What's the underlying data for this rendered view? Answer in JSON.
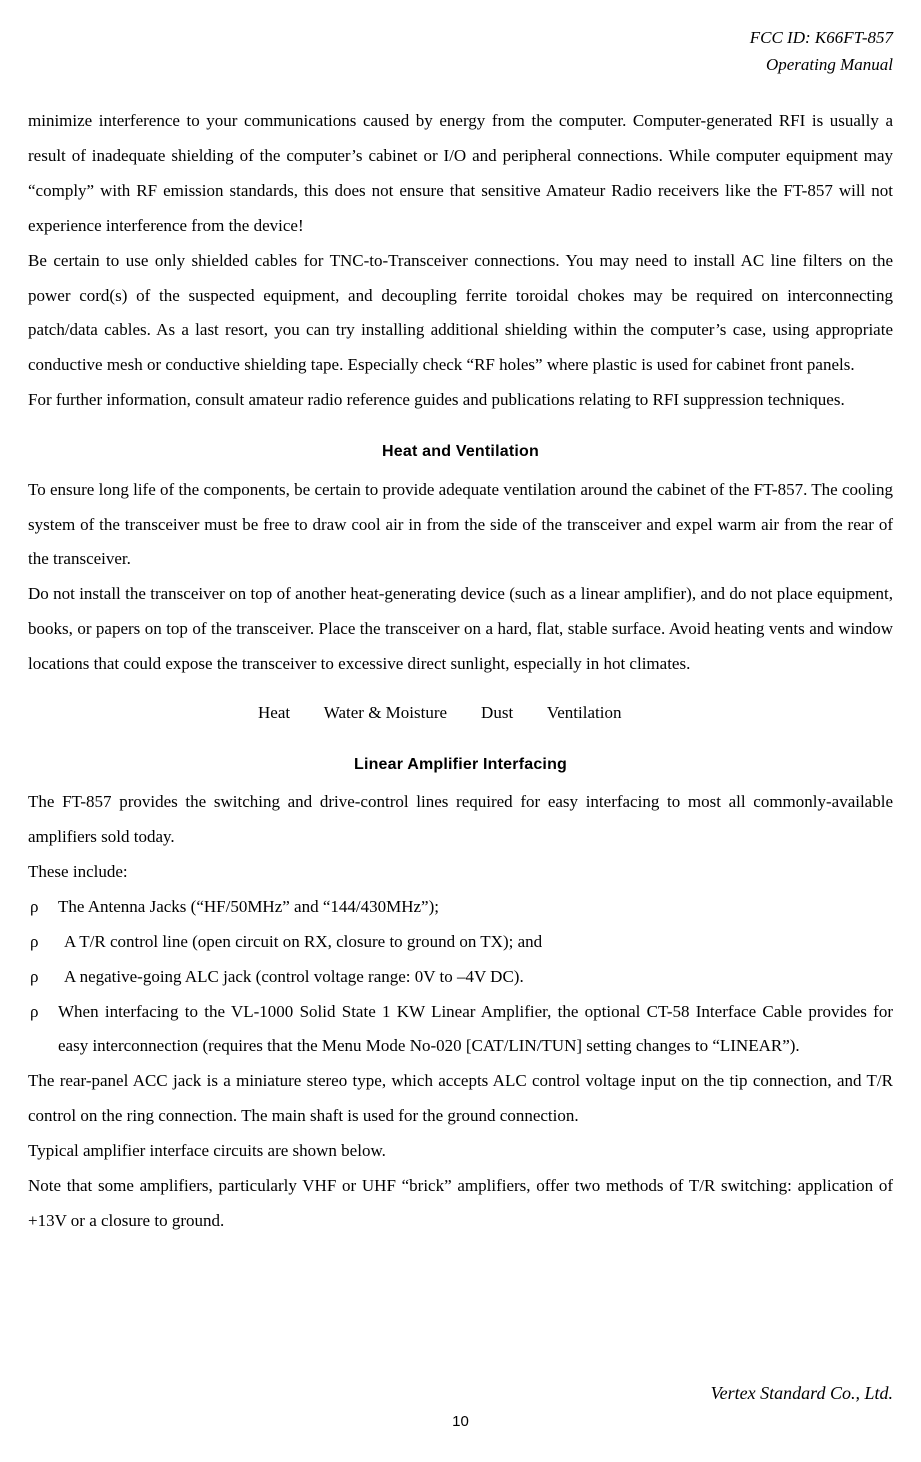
{
  "header": {
    "fcc_line": "FCC ID: K66FT-857",
    "subtitle": "Operating Manual"
  },
  "body": {
    "para1": "minimize interference to your communications caused by energy from the computer. Computer-generated RFI is usually a result of inadequate shielding of the computer’s cabinet or I/O and peripheral connections. While computer equipment may “comply” with RF emission standards, this does not ensure that sensitive Amateur Radio receivers like the FT-857 will not experience interference from the device!",
    "para2": "Be certain to use only shielded cables for TNC-to-Transceiver connections. You may need to install AC line filters on the power cord(s) of the suspected equipment, and decoupling ferrite toroidal chokes may be required on interconnecting patch/data cables. As a last resort, you can try installing additional shielding within the computer’s case, using appropriate conductive mesh or conductive shielding tape. Especially check “RF holes” where plastic is used for cabinet front panels.",
    "para3": "For further information, consult amateur radio reference guides and publications relating to RFI suppression techniques.",
    "heat_heading": "Heat and Ventilation",
    "heat_para1": "To ensure long life of the components, be certain to provide adequate ventilation around the cabinet of the FT-857. The cooling system of the transceiver must be free to draw cool air in from the side of the transceiver and expel warm air from the rear of the transceiver.",
    "heat_para2": "Do not install the transceiver on top of another heat-generating device (such as a linear amplifier), and do not place equipment, books, or papers on top of the transceiver. Place the transceiver on a hard, flat, stable surface. Avoid heating vents and window locations that could expose the transceiver to excessive direct sunlight, especially in hot climates.",
    "icon_row": "Heat        Water & Moisture        Dust        Ventilation",
    "amp_heading": "Linear Amplifier Interfacing",
    "amp_para1": "The FT-857 provides the switching and drive-control lines required for easy interfacing to most all commonly-available amplifiers sold today.",
    "amp_para2": "These include:",
    "bullets": [
      {
        "indent": false,
        "text": "The Antenna Jacks (“HF/50MHz” and “144/430MHz”);"
      },
      {
        "indent": true,
        "text": "A T/R control line (open circuit on RX, closure to ground on TX); and"
      },
      {
        "indent": true,
        "text": "A negative-going ALC jack (control voltage range: 0V to –4V DC)."
      },
      {
        "indent": false,
        "text": "When interfacing to the VL-1000 Solid State 1 KW Linear Amplifier, the optional CT-58 Interface Cable provides for easy interconnection (requires that the Menu Mode No-020 [CAT/LIN/TUN] setting changes to “LINEAR”)."
      }
    ],
    "bullet_mark": "ρ",
    "amp_para3": "The rear-panel ACC jack is a miniature stereo type, which accepts ALC control voltage input on the tip connection, and T/R control on the ring connection. The main shaft is used for the ground connection.",
    "amp_para4": "Typical amplifier interface circuits are shown below.",
    "amp_para5": "Note that some amplifiers, particularly VHF or UHF “brick” amplifiers, offer two methods of T/R switching: application of +13V or a closure to ground."
  },
  "footer": {
    "company": "Vertex Standard Co., Ltd.",
    "page_number": "10"
  }
}
